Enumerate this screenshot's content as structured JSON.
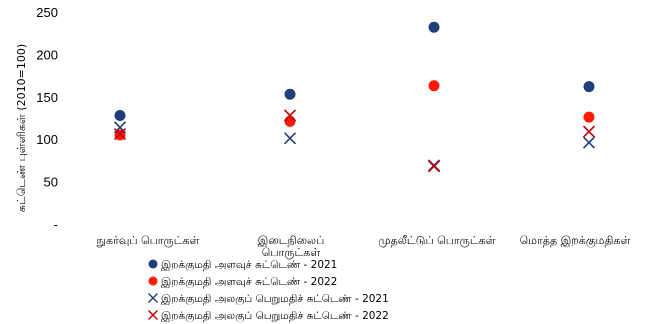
{
  "chart_data": {
    "type": "scatter",
    "ylabel": "சுட்டெண் புள்ளிகள் (2010=100)",
    "ylim": [
      0,
      250
    ],
    "y_ticks": [
      "-",
      "50",
      "100",
      "150",
      "200",
      "250"
    ],
    "categories": [
      "நுகர்வுப் பொருட்கள்",
      "இடைநிலைப் பொருட்கள்",
      "முதலீட்டுப் பொருட்கள்",
      "மொத்த இறக்குமதிகள்"
    ],
    "series": [
      {
        "name": "இறக்குமதி அளவுச் சுட்டெண் - 2021",
        "marker": "circle",
        "color": "#1F3E7A",
        "values": [
          128,
          153,
          232,
          162
        ]
      },
      {
        "name": "இறக்குமதி அளவுச் சுட்டெண் - 2022",
        "marker": "circle",
        "color": "#FF1A00",
        "values": [
          105,
          121,
          163,
          126
        ]
      },
      {
        "name": "இறக்குமதி அலகுப் பெறுமதிச் சுட்டெண் - 2021",
        "marker": "x",
        "color": "#1F3E7A",
        "values": [
          114,
          101,
          69,
          96
        ]
      },
      {
        "name": "இறக்குமதி அலகுப் பெறுமதிச் சுட்டெண் - 2022",
        "marker": "x",
        "color": "#C00000",
        "values": [
          106,
          128,
          68,
          109
        ]
      }
    ],
    "grid": false,
    "legend_position": "bottom"
  }
}
